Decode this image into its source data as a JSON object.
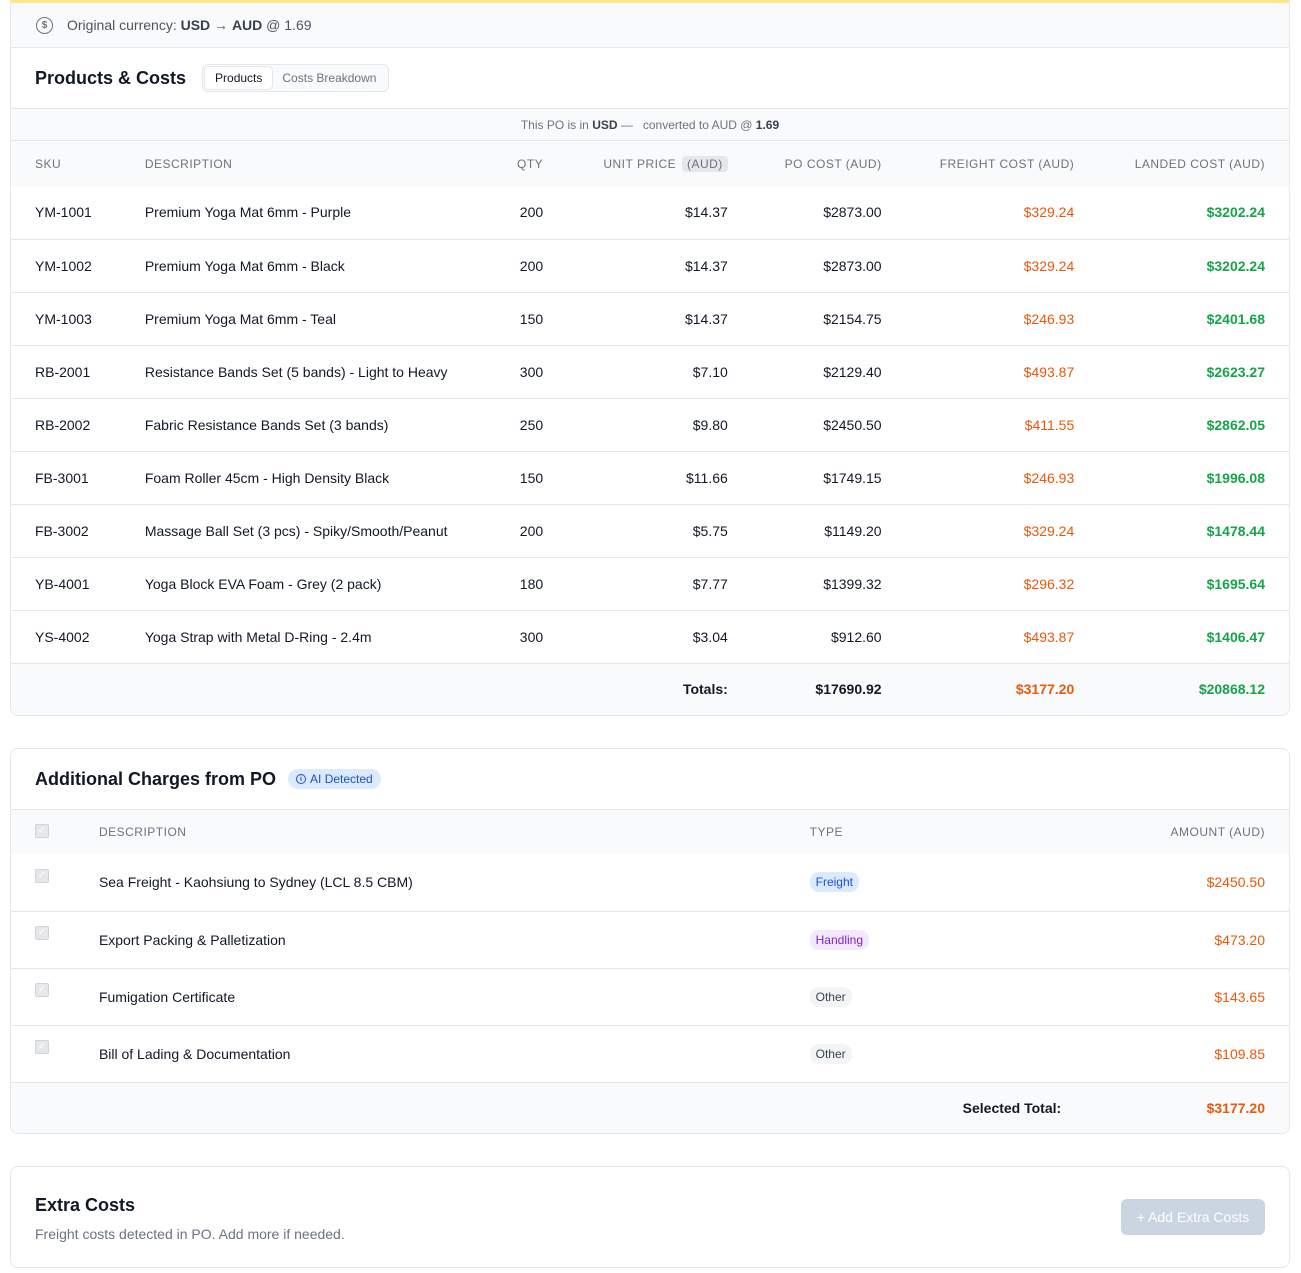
{
  "currency_banner": {
    "prefix": "Original currency: ",
    "from": "USD",
    "arrow": " → ",
    "to": "AUD",
    "rate_text": " @ 1.69"
  },
  "products": {
    "title": "Products & Costs",
    "tabs": [
      "Products",
      "Costs Breakdown"
    ],
    "note": {
      "prefix": "This PO is in ",
      "currency": "USD",
      "middle": " —   converted to AUD @ ",
      "rate": "1.69"
    },
    "columns": {
      "sku": "SKU",
      "description": "DESCRIPTION",
      "qty": "QTY",
      "unit_price": "UNIT PRICE",
      "unit_price_badge": "(AUD)",
      "po_cost": "PO COST (AUD)",
      "freight_cost": "FREIGHT COST (AUD)",
      "landed_cost": "LANDED COST (AUD)"
    },
    "rows": [
      {
        "sku": "YM-1001",
        "description": "Premium Yoga Mat 6mm - Purple",
        "qty": "200",
        "unit_price": "$14.37",
        "po_cost": "$2873.00",
        "freight": "$329.24",
        "landed": "$3202.24"
      },
      {
        "sku": "YM-1002",
        "description": "Premium Yoga Mat 6mm - Black",
        "qty": "200",
        "unit_price": "$14.37",
        "po_cost": "$2873.00",
        "freight": "$329.24",
        "landed": "$3202.24"
      },
      {
        "sku": "YM-1003",
        "description": "Premium Yoga Mat 6mm - Teal",
        "qty": "150",
        "unit_price": "$14.37",
        "po_cost": "$2154.75",
        "freight": "$246.93",
        "landed": "$2401.68"
      },
      {
        "sku": "RB-2001",
        "description": "Resistance Bands Set (5 bands) - Light to Heavy",
        "qty": "300",
        "unit_price": "$7.10",
        "po_cost": "$2129.40",
        "freight": "$493.87",
        "landed": "$2623.27"
      },
      {
        "sku": "RB-2002",
        "description": "Fabric Resistance Bands Set (3 bands)",
        "qty": "250",
        "unit_price": "$9.80",
        "po_cost": "$2450.50",
        "freight": "$411.55",
        "landed": "$2862.05"
      },
      {
        "sku": "FB-3001",
        "description": "Foam Roller 45cm - High Density Black",
        "qty": "150",
        "unit_price": "$11.66",
        "po_cost": "$1749.15",
        "freight": "$246.93",
        "landed": "$1996.08"
      },
      {
        "sku": "FB-3002",
        "description": "Massage Ball Set (3 pcs) - Spiky/Smooth/Peanut",
        "qty": "200",
        "unit_price": "$5.75",
        "po_cost": "$1149.20",
        "freight": "$329.24",
        "landed": "$1478.44"
      },
      {
        "sku": "YB-4001",
        "description": "Yoga Block EVA Foam - Grey (2 pack)",
        "qty": "180",
        "unit_price": "$7.77",
        "po_cost": "$1399.32",
        "freight": "$296.32",
        "landed": "$1695.64"
      },
      {
        "sku": "YS-4002",
        "description": "Yoga Strap with Metal D-Ring - 2.4m",
        "qty": "300",
        "unit_price": "$3.04",
        "po_cost": "$912.60",
        "freight": "$493.87",
        "landed": "$1406.47"
      }
    ],
    "totals": {
      "label": "Totals:",
      "po_cost": "$17690.92",
      "freight": "$3177.20",
      "landed": "$20868.12"
    }
  },
  "charges": {
    "title": "Additional Charges from PO",
    "badge": "AI Detected",
    "columns": {
      "description": "DESCRIPTION",
      "type": "TYPE",
      "amount": "AMOUNT (AUD)"
    },
    "rows": [
      {
        "description": "Sea Freight - Kaohsiung to Sydney (LCL 8.5 CBM)",
        "type": "Freight",
        "amount": "$2450.50"
      },
      {
        "description": "Export Packing & Palletization",
        "type": "Handling",
        "amount": "$473.20"
      },
      {
        "description": "Fumigation Certificate",
        "type": "Other",
        "amount": "$143.65"
      },
      {
        "description": "Bill of Lading & Documentation",
        "type": "Other",
        "amount": "$109.85"
      }
    ],
    "total_label": "Selected Total:",
    "total_value": "$3177.20"
  },
  "extra": {
    "title": "Extra Costs",
    "subtitle": "Freight costs detected in PO. Add more if needed.",
    "button_label": "+ Add Extra Costs"
  },
  "colors": {
    "freight_text": "#ea580c",
    "landed_text": "#16a34a",
    "ai_badge": "#1d4ed8",
    "button_disabled": "#cbd5e1"
  },
  "icons": {
    "currency": "dollar-circle-icon",
    "ai_badge": "info-icon",
    "checkbox": "checkmark-icon"
  }
}
